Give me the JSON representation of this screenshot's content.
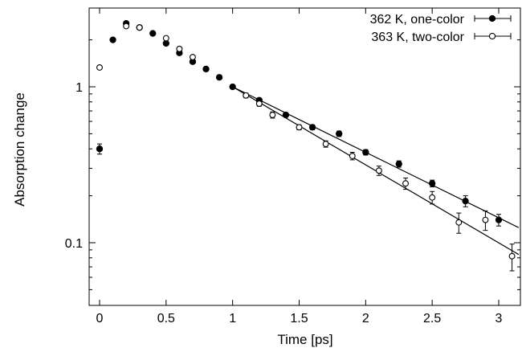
{
  "chart_data": {
    "type": "scatter",
    "xlabel": "Time [ps]",
    "ylabel": "Absorption change",
    "xlim": [
      -0.1,
      3.15
    ],
    "ylim": [
      0.04,
      3.0
    ],
    "yscale": "log",
    "grid": false,
    "legend_position": "top-right",
    "x_ticks": [
      {
        "value": 0,
        "label": "0"
      },
      {
        "value": 0.5,
        "label": "0.5"
      },
      {
        "value": 1,
        "label": "1"
      },
      {
        "value": 1.5,
        "label": "1.5"
      },
      {
        "value": 2,
        "label": "2"
      },
      {
        "value": 2.5,
        "label": "2.5"
      },
      {
        "value": 3,
        "label": "3"
      }
    ],
    "y_major_ticks": [
      {
        "value": 0.1,
        "label": "0.1"
      },
      {
        "value": 1,
        "label": "1"
      }
    ],
    "y_minor_ticks": [
      0.05,
      0.06,
      0.07,
      0.08,
      0.09,
      0.2,
      0.3,
      0.4,
      0.5,
      0.6,
      0.7,
      0.8,
      0.9,
      2
    ],
    "series": [
      {
        "name": "362 K, one-color",
        "marker": "filled-circle",
        "points": [
          {
            "x": 0.0,
            "y": 0.4,
            "err": 0.03
          },
          {
            "x": 0.1,
            "y": 2.0,
            "err": 0.04
          },
          {
            "x": 0.2,
            "y": 2.55,
            "err": 0.04
          },
          {
            "x": 0.3,
            "y": 2.4,
            "err": 0.04
          },
          {
            "x": 0.4,
            "y": 2.2,
            "err": 0.04
          },
          {
            "x": 0.5,
            "y": 1.9,
            "err": 0.04
          },
          {
            "x": 0.6,
            "y": 1.65,
            "err": 0.04
          },
          {
            "x": 0.7,
            "y": 1.45,
            "err": 0.04
          },
          {
            "x": 0.8,
            "y": 1.3,
            "err": 0.03
          },
          {
            "x": 0.9,
            "y": 1.15,
            "err": 0.03
          },
          {
            "x": 1.0,
            "y": 1.0,
            "err": 0.03
          },
          {
            "x": 1.2,
            "y": 0.82,
            "err": 0.02
          },
          {
            "x": 1.4,
            "y": 0.66,
            "err": 0.02
          },
          {
            "x": 1.6,
            "y": 0.55,
            "err": 0.02
          },
          {
            "x": 1.8,
            "y": 0.5,
            "err": 0.02
          },
          {
            "x": 2.0,
            "y": 0.38,
            "err": 0.015
          },
          {
            "x": 2.25,
            "y": 0.32,
            "err": 0.015
          },
          {
            "x": 2.5,
            "y": 0.24,
            "err": 0.012
          },
          {
            "x": 2.75,
            "y": 0.185,
            "err": 0.015
          },
          {
            "x": 3.0,
            "y": 0.14,
            "err": 0.012
          }
        ],
        "fit": {
          "x": [
            1.0,
            3.15
          ],
          "y": [
            1.0,
            0.125
          ]
        }
      },
      {
        "name": "363 K, two-color",
        "marker": "open-circle",
        "points": [
          {
            "x": 0.0,
            "y": 1.33,
            "err": 0.03
          },
          {
            "x": 0.2,
            "y": 2.45,
            "err": 0.04
          },
          {
            "x": 0.3,
            "y": 2.4,
            "err": 0.04
          },
          {
            "x": 0.5,
            "y": 2.05,
            "err": 0.04
          },
          {
            "x": 0.6,
            "y": 1.75,
            "err": 0.04
          },
          {
            "x": 0.7,
            "y": 1.55,
            "err": 0.04
          },
          {
            "x": 1.1,
            "y": 0.88,
            "err": 0.03
          },
          {
            "x": 1.2,
            "y": 0.78,
            "err": 0.03
          },
          {
            "x": 1.3,
            "y": 0.66,
            "err": 0.03
          },
          {
            "x": 1.5,
            "y": 0.55,
            "err": 0.02
          },
          {
            "x": 1.7,
            "y": 0.43,
            "err": 0.02
          },
          {
            "x": 1.9,
            "y": 0.36,
            "err": 0.02
          },
          {
            "x": 2.1,
            "y": 0.29,
            "err": 0.02
          },
          {
            "x": 2.3,
            "y": 0.24,
            "err": 0.02
          },
          {
            "x": 2.5,
            "y": 0.195,
            "err": 0.018
          },
          {
            "x": 2.7,
            "y": 0.135,
            "err": 0.02
          },
          {
            "x": 2.9,
            "y": 0.14,
            "err": 0.02
          },
          {
            "x": 3.1,
            "y": 0.082,
            "err": 0.016
          }
        ],
        "fit": {
          "x": [
            1.0,
            3.15
          ],
          "y": [
            1.0,
            0.084
          ]
        }
      }
    ]
  }
}
